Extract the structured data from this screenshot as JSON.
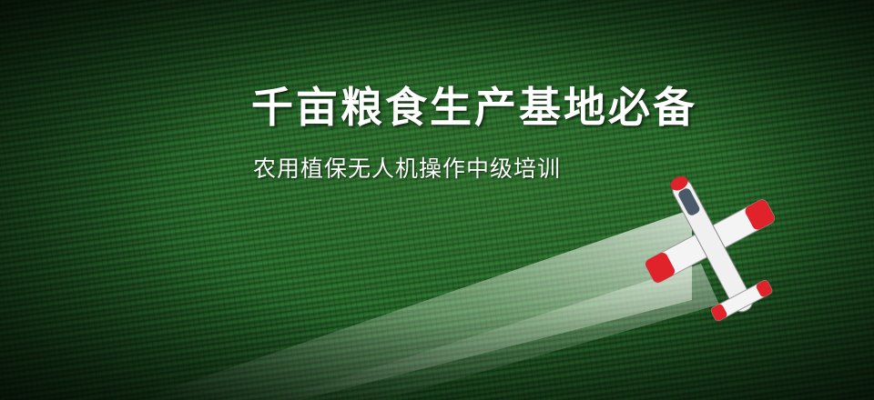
{
  "banner": {
    "title": "千亩粮食生产基地必备",
    "subtitle": "农用植保无人机操作中级培训",
    "icon": "crop-duster-airplane-icon",
    "colors": {
      "field": "#2f7a33",
      "text": "#ffffff",
      "plane_accent": "#e0222a"
    }
  }
}
